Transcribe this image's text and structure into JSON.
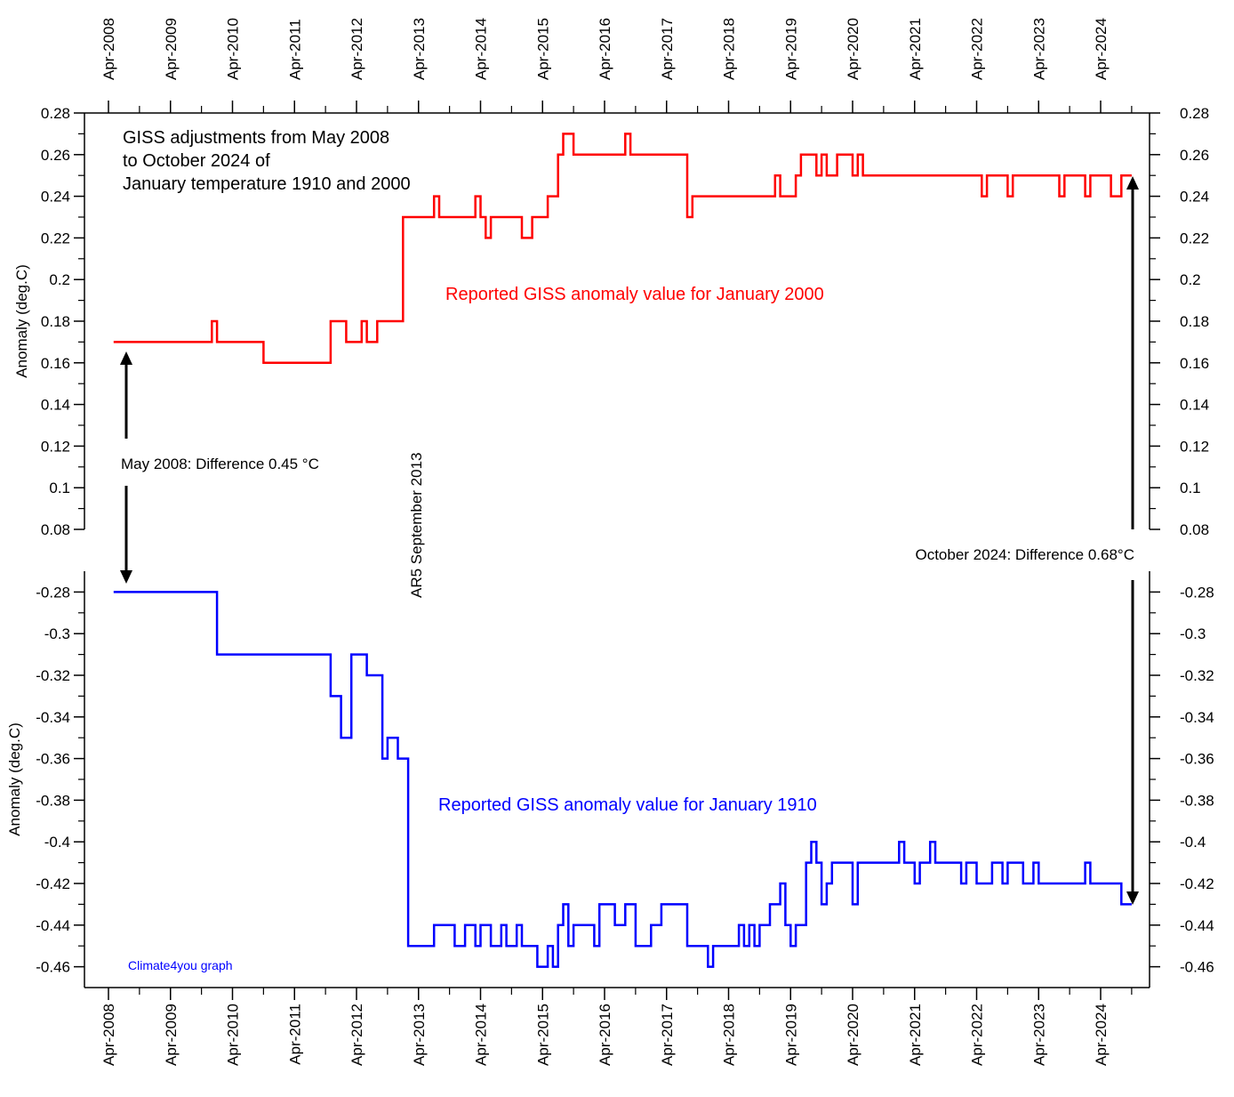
{
  "chart_data": [
    {
      "type": "line",
      "title": "GISS adjustments from May 2008 to October 2024 of January temperature 1910 and 2000",
      "title_lines": [
        "GISS adjustments from May 2008",
        "to October 2024 of",
        "January temperature 1910 and 2000"
      ],
      "ylabel": "Anomaly (deg.C)",
      "ylim": [
        0.08,
        0.28
      ],
      "yticks": [
        "0.08",
        "0.1",
        "0.12",
        "0.14",
        "0.16",
        "0.18",
        "0.2",
        "0.22",
        "0.24",
        "0.26",
        "0.28"
      ],
      "step": true,
      "series": [
        {
          "name": "Reported GISS anomaly value for January 2000",
          "color": "#ff0000",
          "points": [
            [
              "2008-05",
              0.17
            ],
            [
              "2009-12",
              0.18
            ],
            [
              "2010-01",
              0.17
            ],
            [
              "2010-10",
              0.16
            ],
            [
              "2011-11",
              0.18
            ],
            [
              "2012-02",
              0.17
            ],
            [
              "2012-05",
              0.18
            ],
            [
              "2012-06",
              0.17
            ],
            [
              "2012-08",
              0.18
            ],
            [
              "2013-01",
              0.23
            ],
            [
              "2013-07",
              0.24
            ],
            [
              "2013-08",
              0.23
            ],
            [
              "2014-03",
              0.24
            ],
            [
              "2014-04",
              0.23
            ],
            [
              "2014-05",
              0.22
            ],
            [
              "2014-06",
              0.23
            ],
            [
              "2014-12",
              0.22
            ],
            [
              "2015-02",
              0.23
            ],
            [
              "2015-05",
              0.24
            ],
            [
              "2015-07",
              0.26
            ],
            [
              "2015-08",
              0.27
            ],
            [
              "2015-10",
              0.26
            ],
            [
              "2016-08",
              0.27
            ],
            [
              "2016-09",
              0.26
            ],
            [
              "2017-08",
              0.23
            ],
            [
              "2017-09",
              0.24
            ],
            [
              "2019-01",
              0.25
            ],
            [
              "2019-02",
              0.24
            ],
            [
              "2019-05",
              0.25
            ],
            [
              "2019-06",
              0.26
            ],
            [
              "2019-09",
              0.25
            ],
            [
              "2019-10",
              0.26
            ],
            [
              "2019-11",
              0.25
            ],
            [
              "2020-01",
              0.26
            ],
            [
              "2020-04",
              0.25
            ],
            [
              "2020-05",
              0.26
            ],
            [
              "2020-06",
              0.25
            ],
            [
              "2022-05",
              0.24
            ],
            [
              "2022-06",
              0.25
            ],
            [
              "2022-10",
              0.24
            ],
            [
              "2022-11",
              0.25
            ],
            [
              "2023-08",
              0.24
            ],
            [
              "2023-09",
              0.25
            ],
            [
              "2024-01",
              0.24
            ],
            [
              "2024-02",
              0.25
            ],
            [
              "2024-06",
              0.24
            ],
            [
              "2024-08",
              0.25
            ],
            [
              "2024-10",
              0.25
            ]
          ]
        }
      ]
    },
    {
      "type": "line",
      "ylabel": "Anomaly (deg.C)",
      "ylim": [
        -0.47,
        -0.27
      ],
      "yticks": [
        "-0.46",
        "-0.44",
        "-0.42",
        "-0.4",
        "-0.38",
        "-0.36",
        "-0.34",
        "-0.32",
        "-0.3",
        "-0.28"
      ],
      "step": true,
      "series": [
        {
          "name": "Reported GISS anomaly value for January 1910",
          "color": "#0000ff",
          "points": [
            [
              "2008-05",
              -0.28
            ],
            [
              "2010-01",
              -0.31
            ],
            [
              "2011-11",
              -0.33
            ],
            [
              "2012-01",
              -0.35
            ],
            [
              "2012-03",
              -0.31
            ],
            [
              "2012-06",
              -0.32
            ],
            [
              "2012-09",
              -0.36
            ],
            [
              "2012-10",
              -0.35
            ],
            [
              "2012-12",
              -0.36
            ],
            [
              "2013-02",
              -0.45
            ],
            [
              "2013-04",
              -0.45
            ],
            [
              "2013-07",
              -0.44
            ],
            [
              "2013-11",
              -0.45
            ],
            [
              "2014-01",
              -0.44
            ],
            [
              "2014-03",
              -0.45
            ],
            [
              "2014-04",
              -0.44
            ],
            [
              "2014-06",
              -0.45
            ],
            [
              "2014-08",
              -0.44
            ],
            [
              "2014-09",
              -0.45
            ],
            [
              "2014-11",
              -0.44
            ],
            [
              "2014-12",
              -0.45
            ],
            [
              "2015-03",
              -0.46
            ],
            [
              "2015-05",
              -0.45
            ],
            [
              "2015-06",
              -0.46
            ],
            [
              "2015-07",
              -0.44
            ],
            [
              "2015-08",
              -0.43
            ],
            [
              "2015-09",
              -0.45
            ],
            [
              "2015-10",
              -0.44
            ],
            [
              "2016-02",
              -0.45
            ],
            [
              "2016-03",
              -0.43
            ],
            [
              "2016-06",
              -0.44
            ],
            [
              "2016-08",
              -0.43
            ],
            [
              "2016-10",
              -0.45
            ],
            [
              "2017-01",
              -0.44
            ],
            [
              "2017-03",
              -0.43
            ],
            [
              "2017-08",
              -0.45
            ],
            [
              "2017-12",
              -0.46
            ],
            [
              "2018-01",
              -0.45
            ],
            [
              "2018-06",
              -0.44
            ],
            [
              "2018-07",
              -0.45
            ],
            [
              "2018-08",
              -0.44
            ],
            [
              "2018-09",
              -0.45
            ],
            [
              "2018-10",
              -0.44
            ],
            [
              "2018-12",
              -0.43
            ],
            [
              "2019-02",
              -0.42
            ],
            [
              "2019-03",
              -0.44
            ],
            [
              "2019-04",
              -0.45
            ],
            [
              "2019-05",
              -0.44
            ],
            [
              "2019-07",
              -0.41
            ],
            [
              "2019-08",
              -0.4
            ],
            [
              "2019-09",
              -0.41
            ],
            [
              "2019-10",
              -0.43
            ],
            [
              "2019-11",
              -0.42
            ],
            [
              "2019-12",
              -0.41
            ],
            [
              "2020-04",
              -0.43
            ],
            [
              "2020-05",
              -0.41
            ],
            [
              "2021-01",
              -0.4
            ],
            [
              "2021-02",
              -0.41
            ],
            [
              "2021-04",
              -0.42
            ],
            [
              "2021-05",
              -0.41
            ],
            [
              "2021-07",
              -0.4
            ],
            [
              "2021-08",
              -0.41
            ],
            [
              "2022-01",
              -0.42
            ],
            [
              "2022-02",
              -0.41
            ],
            [
              "2022-04",
              -0.42
            ],
            [
              "2022-07",
              -0.41
            ],
            [
              "2022-09",
              -0.42
            ],
            [
              "2022-10",
              -0.41
            ],
            [
              "2023-01",
              -0.42
            ],
            [
              "2023-03",
              -0.41
            ],
            [
              "2023-04",
              -0.42
            ],
            [
              "2024-01",
              -0.41
            ],
            [
              "2024-02",
              -0.42
            ],
            [
              "2024-08",
              -0.43
            ],
            [
              "2024-10",
              -0.43
            ]
          ]
        }
      ]
    }
  ],
  "x_axis": {
    "tick_labels": [
      "Apr-2008",
      "Apr-2009",
      "Apr-2010",
      "Apr-2011",
      "Apr-2012",
      "Apr-2013",
      "Apr-2014",
      "Apr-2015",
      "Apr-2016",
      "Apr-2017",
      "Apr-2018",
      "Apr-2019",
      "Apr-2020",
      "Apr-2021",
      "Apr-2022",
      "Apr-2023",
      "Apr-2024"
    ],
    "range": [
      "2008-04",
      "2024-12"
    ]
  },
  "annotations": {
    "may_2008_diff": "May 2008: Difference 0.45 °C",
    "oct_2024_diff": "October 2024: Difference 0.68°C",
    "ar5": "AR5 September 2013",
    "credit": "Climate4you graph"
  },
  "colors": {
    "upper": "#ff0000",
    "lower": "#0000ff",
    "credit": "#0000ff",
    "axis": "#000000"
  }
}
